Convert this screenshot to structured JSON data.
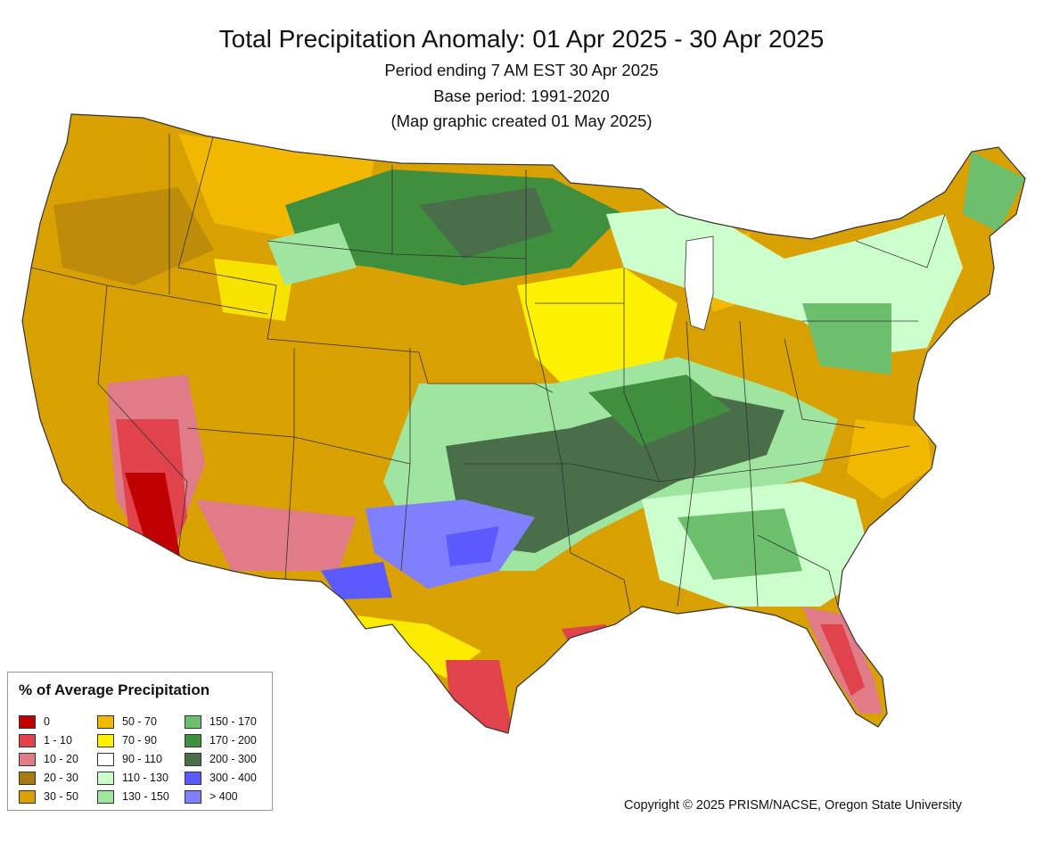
{
  "title": "Total Precipitation Anomaly: 01 Apr 2025 - 30 Apr 2025",
  "subtitle_lines": [
    "Period ending 7 AM EST 30 Apr 2025",
    "Base period: 1991-2020",
    "(Map graphic created 01 May 2025)"
  ],
  "legend": {
    "title": "% of Average Precipitation",
    "items": [
      {
        "label": "0",
        "color": "#c00000"
      },
      {
        "label": "1 - 10",
        "color": "#e0434b"
      },
      {
        "label": "10 - 20",
        "color": "#e07c88"
      },
      {
        "label": "20 - 30",
        "color": "#a87b12"
      },
      {
        "label": "30 - 50",
        "color": "#d9a100"
      },
      {
        "label": "50 - 70",
        "color": "#f2b800"
      },
      {
        "label": "70 - 90",
        "color": "#fff200"
      },
      {
        "label": "90 - 110",
        "color": "#ffffff"
      },
      {
        "label": "110 - 130",
        "color": "#ccffcc"
      },
      {
        "label": "130 - 150",
        "color": "#9fe59f"
      },
      {
        "label": "150 - 170",
        "color": "#6cbf6c"
      },
      {
        "label": "170 - 200",
        "color": "#3f8f3f"
      },
      {
        "label": "200 - 300",
        "color": "#4a6e4a"
      },
      {
        "label": "300 - 400",
        "color": "#5a5aff"
      },
      {
        "label": "> 400",
        "color": "#8080ff"
      }
    ]
  },
  "copyright": "Copyright © 2025 PRISM/NACSE, Oregon State University"
}
